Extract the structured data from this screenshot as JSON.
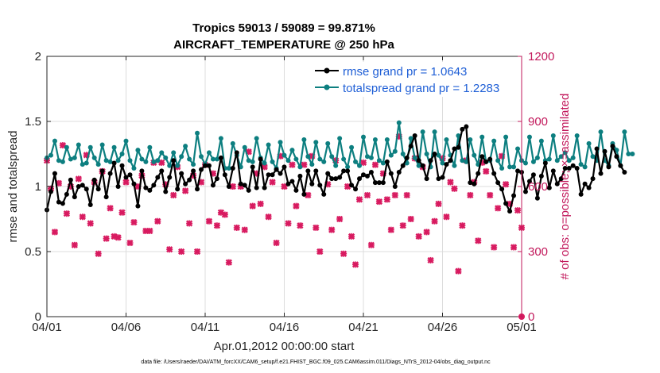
{
  "chart_data": {
    "type": "line",
    "title": "Tropics 59013 / 59089 = 99.871%",
    "subtitle": "AIRCRAFT_TEMPERATURE @ 250 hPa",
    "xlabel": "Apr.01,2012 00:00:00 start",
    "ylabel": "rmse and totalspread",
    "y2label": "# of obs: o=possible; ×=assimilated",
    "xlim": [
      0,
      30
    ],
    "ylim": [
      0,
      2
    ],
    "y2lim": [
      0,
      1200
    ],
    "x_ticks": [
      0,
      5,
      10,
      15,
      20,
      25,
      30
    ],
    "x_tick_labels": [
      "04/01",
      "04/06",
      "04/11",
      "04/16",
      "04/21",
      "04/26",
      "05/01"
    ],
    "y_ticks": [
      0,
      0.5,
      1,
      1.5,
      2
    ],
    "y_tick_labels": [
      "0",
      "0.5",
      "1",
      "1.5",
      "2"
    ],
    "y2_ticks": [
      0,
      300,
      600,
      900,
      1200
    ],
    "y2_tick_labels": [
      "0",
      "300",
      "600",
      "900",
      "1200"
    ],
    "x_step": 0.25,
    "grid": true,
    "legend_position": "top-right",
    "colors": {
      "rmse": "#000000",
      "spread": "#0d7f80",
      "obs": "#d81b60",
      "axis": "#262626",
      "legend_text": "#1f5fd6"
    },
    "series": [
      {
        "name": "rmse grand pr = 1.0643",
        "key": "rmse",
        "values": [
          0.82,
          0.96,
          1.1,
          0.88,
          0.87,
          0.94,
          1.05,
          0.92,
          1.0,
          1.01,
          0.98,
          0.86,
          1.05,
          0.98,
          1.12,
          0.92,
          1.1,
          1.18,
          1.0,
          1.16,
          1.07,
          1.09,
          1.02,
          0.85,
          1.12,
          0.99,
          0.97,
          1.01,
          1.07,
          1.12,
          0.96,
          1.07,
          1.2,
          0.98,
          1.1,
          1.02,
          1.05,
          1.12,
          0.98,
          1.13,
          1.16,
          1.16,
          1.01,
          1.06,
          1.22,
          1.09,
          1.0,
          1.14,
          1.26,
          1.02,
          1.01,
          0.97,
          1.15,
          0.99,
          1.21,
          0.99,
          1.09,
          1.09,
          1.13,
          1.1,
          1.15,
          1.02,
          1.04,
          0.97,
          1.08,
          0.94,
          1.12,
          1.02,
          1.12,
          1.01,
          0.94,
          1.1,
          1.06,
          1.06,
          1.07,
          1.12,
          1.12,
          1.01,
          0.98,
          1.06,
          1.09,
          1.08,
          1.11,
          1.03,
          1.03,
          1.03,
          1.19,
          1.1,
          1.0,
          1.11,
          1.16,
          1.22,
          1.31,
          1.39,
          1.2,
          1.16,
          1.06,
          1.2,
          1.25,
          1.06,
          1.07,
          1.17,
          1.2,
          1.29,
          1.3,
          1.44,
          1.46,
          1.03,
          1.02,
          1.1,
          1.23,
          1.19,
          1.21,
          1.1,
          1.03,
          0.98,
          0.87,
          0.81,
          0.93,
          1.12,
          1.11,
          0.96,
          1.04,
          1.09,
          0.91,
          1.08,
          1.18,
          0.99,
          1.12,
          1.02,
          1.06,
          1.14,
          1.14,
          1.16,
          1.14,
          0.94,
          1.02,
          0.99,
          1.06,
          1.29,
          1.1,
          1.27,
          1.15,
          1.31,
          1.23,
          1.16,
          1.11
        ]
      },
      {
        "name": "totalspread grand pr = 1.2283",
        "key": "spread",
        "values": [
          1.22,
          1.24,
          1.35,
          1.2,
          1.19,
          1.3,
          1.21,
          1.22,
          1.32,
          1.17,
          1.18,
          1.3,
          1.22,
          1.17,
          1.32,
          1.2,
          1.19,
          1.3,
          1.2,
          1.25,
          1.35,
          1.2,
          1.14,
          1.28,
          1.21,
          1.19,
          1.3,
          1.19,
          1.2,
          1.26,
          1.22,
          1.16,
          1.26,
          1.16,
          1.23,
          1.31,
          1.21,
          1.17,
          1.41,
          1.23,
          1.17,
          1.26,
          1.21,
          1.21,
          1.37,
          1.14,
          1.14,
          1.33,
          1.24,
          1.15,
          1.3,
          1.2,
          1.19,
          1.37,
          1.22,
          1.18,
          1.32,
          1.19,
          1.14,
          1.34,
          1.24,
          1.2,
          1.28,
          1.21,
          1.15,
          1.36,
          1.23,
          1.17,
          1.34,
          1.21,
          1.19,
          1.33,
          1.23,
          1.16,
          1.37,
          1.21,
          1.15,
          1.3,
          1.19,
          1.16,
          1.38,
          1.23,
          1.22,
          1.36,
          1.2,
          1.18,
          1.36,
          1.24,
          1.27,
          1.49,
          1.25,
          1.18,
          1.37,
          1.22,
          1.16,
          1.42,
          1.25,
          1.15,
          1.42,
          1.24,
          1.18,
          1.36,
          1.24,
          1.16,
          1.39,
          1.2,
          1.19,
          1.36,
          1.24,
          1.17,
          1.38,
          1.19,
          1.2,
          1.35,
          1.2,
          1.14,
          1.38,
          1.15,
          1.15,
          1.29,
          1.2,
          1.18,
          1.38,
          1.19,
          1.22,
          1.35,
          1.2,
          1.21,
          1.39,
          1.2,
          1.23,
          1.26,
          1.2,
          1.22,
          1.39,
          1.17,
          1.15,
          1.33,
          1.23,
          1.2,
          1.42,
          1.2,
          1.16,
          1.33,
          1.28,
          1.16,
          1.42,
          1.25,
          1.25
        ]
      }
    ],
    "obs_assimilated": [
      [
        0.0,
        720
      ],
      [
        0.25,
        590
      ],
      [
        0.5,
        390
      ],
      [
        0.75,
        615
      ],
      [
        1.0,
        790
      ],
      [
        1.25,
        475
      ],
      [
        1.5,
        600
      ],
      [
        1.75,
        330
      ],
      [
        2.0,
        635
      ],
      [
        2.25,
        460
      ],
      [
        2.5,
        745
      ],
      [
        2.75,
        430
      ],
      [
        3.0,
        620
      ],
      [
        3.25,
        290
      ],
      [
        3.5,
        670
      ],
      [
        3.75,
        360
      ],
      [
        4.0,
        500
      ],
      [
        4.25,
        370
      ],
      [
        4.5,
        365
      ],
      [
        4.75,
        480
      ],
      [
        5.0,
        620
      ],
      [
        5.25,
        340
      ],
      [
        5.5,
        435
      ],
      [
        5.75,
        600
      ],
      [
        6.0,
        650
      ],
      [
        6.25,
        395
      ],
      [
        6.5,
        395
      ],
      [
        6.75,
        710
      ],
      [
        7.0,
        440
      ],
      [
        7.25,
        710
      ],
      [
        7.5,
        610
      ],
      [
        7.75,
        310
      ],
      [
        8.0,
        560
      ],
      [
        8.25,
        690
      ],
      [
        8.5,
        300
      ],
      [
        8.75,
        580
      ],
      [
        9.0,
        430
      ],
      [
        9.25,
        650
      ],
      [
        9.5,
        300
      ],
      [
        9.75,
        620
      ],
      [
        10.0,
        700
      ],
      [
        10.25,
        440
      ],
      [
        10.5,
        660
      ],
      [
        10.75,
        420
      ],
      [
        11.0,
        480
      ],
      [
        11.25,
        470
      ],
      [
        11.5,
        250
      ],
      [
        11.75,
        600
      ],
      [
        12.0,
        410
      ],
      [
        12.25,
        600
      ],
      [
        12.5,
        400
      ],
      [
        12.75,
        760
      ],
      [
        13.0,
        510
      ],
      [
        13.25,
        660
      ],
      [
        13.5,
        520
      ],
      [
        13.75,
        690
      ],
      [
        14.0,
        460
      ],
      [
        14.25,
        620
      ],
      [
        14.5,
        340
      ],
      [
        14.75,
        740
      ],
      [
        15.0,
        600
      ],
      [
        15.25,
        430
      ],
      [
        15.5,
        700
      ],
      [
        15.75,
        510
      ],
      [
        16.0,
        420
      ],
      [
        16.25,
        700
      ],
      [
        16.5,
        560
      ],
      [
        16.75,
        740
      ],
      [
        17.0,
        410
      ],
      [
        17.25,
        300
      ],
      [
        17.75,
        610
      ],
      [
        18.0,
        400
      ],
      [
        18.25,
        720
      ],
      [
        18.5,
        450
      ],
      [
        18.75,
        290
      ],
      [
        19.0,
        600
      ],
      [
        19.25,
        370
      ],
      [
        19.5,
        240
      ],
      [
        19.75,
        540
      ],
      [
        20.0,
        710
      ],
      [
        20.25,
        560
      ],
      [
        20.5,
        330
      ],
      [
        20.75,
        700
      ],
      [
        21.0,
        530
      ],
      [
        21.25,
        660
      ],
      [
        21.5,
        540
      ],
      [
        21.75,
        400
      ],
      [
        22.0,
        560
      ],
      [
        22.25,
        830
      ],
      [
        22.5,
        420
      ],
      [
        22.75,
        560
      ],
      [
        23.0,
        450
      ],
      [
        23.25,
        730
      ],
      [
        23.5,
        370
      ],
      [
        23.75,
        690
      ],
      [
        24.0,
        390
      ],
      [
        24.25,
        260
      ],
      [
        24.5,
        440
      ],
      [
        24.75,
        520
      ],
      [
        25.0,
        730
      ],
      [
        25.25,
        460
      ],
      [
        25.5,
        620
      ],
      [
        25.75,
        590
      ],
      [
        26.0,
        210
      ],
      [
        26.25,
        420
      ],
      [
        26.5,
        720
      ],
      [
        26.75,
        560
      ],
      [
        27.0,
        620
      ],
      [
        27.25,
        350
      ],
      [
        27.5,
        710
      ],
      [
        27.75,
        670
      ],
      [
        28.0,
        560
      ],
      [
        28.25,
        320
      ],
      [
        28.5,
        500
      ],
      [
        28.75,
        740
      ],
      [
        29.0,
        610
      ],
      [
        29.25,
        520
      ],
      [
        29.5,
        320
      ],
      [
        29.75,
        490
      ],
      [
        30.0,
        410
      ]
    ],
    "obs_possible_final": [
      [
        30.0,
        0
      ]
    ]
  },
  "footer": {
    "data_file": "data file: /Users/raeder/DAI/ATM_forcXX/CAM6_setup/f.e21.FHIST_BGC.f09_025.CAM6assim.011/Diags_NTrS_2012-04/obs_diag_output.nc"
  }
}
